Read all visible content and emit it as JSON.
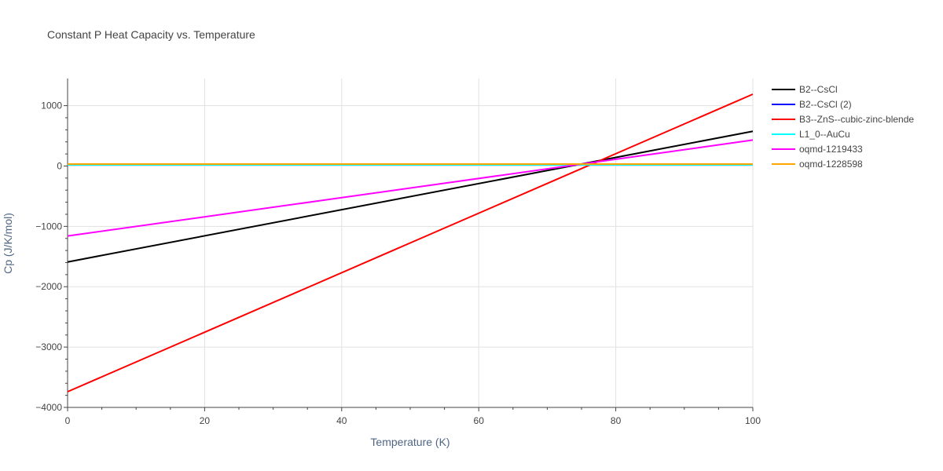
{
  "chart_data": {
    "type": "line",
    "title": "Constant P Heat Capacity vs. Temperature",
    "xlabel": "Temperature (K)",
    "ylabel": "Cp (J/K/mol)",
    "xlim": [
      0,
      100
    ],
    "ylim": [
      -4000,
      1450
    ],
    "xticks": [
      0,
      20,
      40,
      60,
      80,
      100
    ],
    "xtick_labels": [
      "0",
      "20",
      "40",
      "60",
      "80",
      "100"
    ],
    "yticks": [
      -4000,
      -3000,
      -2000,
      -1000,
      0,
      1000
    ],
    "ytick_labels": [
      "−4000",
      "−3000",
      "−2000",
      "−1000",
      "0",
      "1000"
    ],
    "grid": true,
    "legend_position": "right",
    "series": [
      {
        "name": "B2--CsCl",
        "color": "#000000",
        "x": [
          0,
          100
        ],
        "y": [
          -1590,
          575
        ]
      },
      {
        "name": "B2--CsCl (2)",
        "color": "#0000ff",
        "x": [
          0,
          100
        ],
        "y": [
          25,
          25
        ]
      },
      {
        "name": "B3--ZnS--cubic-zinc-blende",
        "color": "#ff0000",
        "x": [
          0,
          100
        ],
        "y": [
          -3740,
          1190
        ]
      },
      {
        "name": "L1_0--AuCu",
        "color": "#00ffff",
        "x": [
          0,
          100
        ],
        "y": [
          20,
          20
        ]
      },
      {
        "name": "oqmd-1219433",
        "color": "#ff00ff",
        "x": [
          0,
          100
        ],
        "y": [
          -1160,
          430
        ]
      },
      {
        "name": "oqmd-1228598",
        "color": "#ffa500",
        "x": [
          0,
          100
        ],
        "y": [
          32,
          32
        ]
      }
    ]
  }
}
